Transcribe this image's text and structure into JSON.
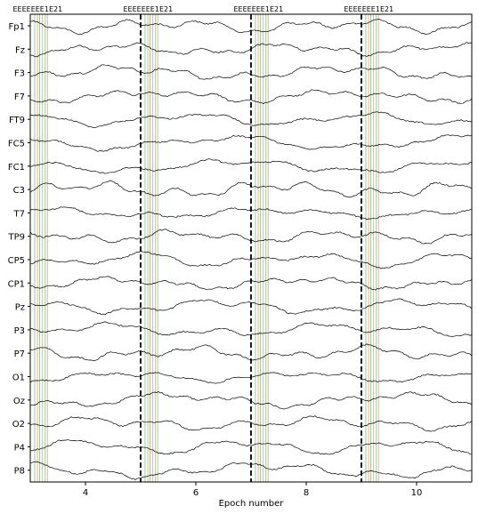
{
  "chart_data": {
    "type": "line",
    "xlabel": "Epoch number",
    "xlim": [
      3.0,
      11.0
    ],
    "x_ticks": [
      4,
      6,
      8,
      10
    ],
    "channels": [
      "Fp1",
      "Fz",
      "F3",
      "F7",
      "FT9",
      "FC5",
      "FC1",
      "C3",
      "T7",
      "TP9",
      "CP5",
      "CP1",
      "Pz",
      "P3",
      "P7",
      "O1",
      "Oz",
      "O2",
      "P4",
      "P8"
    ],
    "epoch_boundaries": [
      5,
      7,
      9
    ],
    "event_markers": [
      {
        "label": "E",
        "x": 3.08,
        "color": "#9ec9a8"
      },
      {
        "label": "E",
        "x": 3.13,
        "color": "#f0b27a"
      },
      {
        "label": "E",
        "x": 3.17,
        "color": "#9ec9a8"
      },
      {
        "label": "E",
        "x": 3.22,
        "color": "#f0b27a"
      },
      {
        "label": "E",
        "x": 3.27,
        "color": "#9ec9a8"
      },
      {
        "label": "E",
        "x": 3.31,
        "color": "#f0b27a"
      },
      {
        "label": "E",
        "x": 5.08,
        "color": "#9ec9a8"
      },
      {
        "label": "E",
        "x": 5.13,
        "color": "#f0b27a"
      },
      {
        "label": "E",
        "x": 5.17,
        "color": "#9ec9a8"
      },
      {
        "label": "E",
        "x": 5.22,
        "color": "#f0b27a"
      },
      {
        "label": "E",
        "x": 5.27,
        "color": "#9ec9a8"
      },
      {
        "label": "E",
        "x": 5.31,
        "color": "#f0b27a"
      },
      {
        "label": "E",
        "x": 7.08,
        "color": "#9ec9a8"
      },
      {
        "label": "E",
        "x": 7.13,
        "color": "#f0b27a"
      },
      {
        "label": "E",
        "x": 7.17,
        "color": "#9ec9a8"
      },
      {
        "label": "E",
        "x": 7.22,
        "color": "#f0b27a"
      },
      {
        "label": "E",
        "x": 7.27,
        "color": "#9ec9a8"
      },
      {
        "label": "E",
        "x": 7.31,
        "color": "#f0b27a"
      },
      {
        "label": "E",
        "x": 9.08,
        "color": "#9ec9a8"
      },
      {
        "label": "E",
        "x": 9.13,
        "color": "#f0b27a"
      },
      {
        "label": "E",
        "x": 9.17,
        "color": "#9ec9a8"
      },
      {
        "label": "E",
        "x": 9.22,
        "color": "#f0b27a"
      },
      {
        "label": "E",
        "x": 9.27,
        "color": "#9ec9a8"
      },
      {
        "label": "E",
        "x": 9.31,
        "color": "#f0b27a"
      }
    ],
    "event_label_texts": [
      "E",
      "EE",
      "EEE",
      "E1",
      "E2",
      "1",
      "2"
    ],
    "colors": {
      "trace": "#000000",
      "boundary": "#000000",
      "event_green": "#9ec9a8",
      "event_orange": "#f0b27a"
    }
  }
}
